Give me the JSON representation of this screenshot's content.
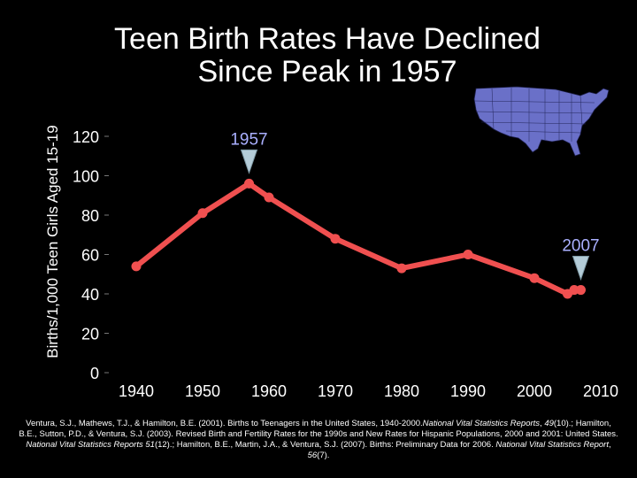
{
  "title_line1": "Teen Birth Rates Have Declined",
  "title_line2": "Since Peak in 1957",
  "chart_data": {
    "type": "line",
    "title": "Teen Birth Rates Have Declined Since Peak in 1957",
    "xlabel": "",
    "ylabel": "Births/1,000 Teen Girls Aged 15-19",
    "x_ticks": [
      1940,
      1950,
      1960,
      1970,
      1980,
      1990,
      2000,
      2010
    ],
    "y_ticks": [
      0,
      20,
      40,
      60,
      80,
      100,
      120
    ],
    "xlim": [
      1932,
      2012
    ],
    "ylim": [
      0,
      120
    ],
    "grid": false,
    "series": [
      {
        "color": "#f05050",
        "x": [
          1940,
          1950,
          1957,
          1960,
          1970,
          1980,
          1990,
          2000,
          2005,
          2006,
          2007
        ],
        "y": [
          54,
          81,
          96,
          89,
          68,
          53,
          60,
          48,
          40,
          42,
          42
        ]
      }
    ],
    "annotations": [
      {
        "label": "1957",
        "x": 1957,
        "y": 96,
        "color": "#aab0ff"
      },
      {
        "label": "2007",
        "x": 2007,
        "y": 42,
        "color": "#aab0ff"
      }
    ]
  },
  "map_icon": "us-states-map-icon",
  "citation": {
    "p1": "Ventura, S.J., Mathews, T.J., & Hamilton, B.E. (2001). Births to Teenagers in the United States, 1940-2000.",
    "j1": "National Vital Statistics Reports",
    "p2": ",",
    "v1": "49",
    "p3": "(10).; Hamilton, B.E., Sutton, P.D., & Ventura, S.J. (2003). Revised Birth and Fertility Rates for the 1990s and New Rates for Hispanic Populations, 2000 and 2001: United States.",
    "j2": "National Vital Statistics Reports 51",
    "p4": "(12).; Hamilton, B.E., Martin, J.A., & Ventura, S.J. (2007). Births: Preliminary Data for 2006.",
    "j3": "National Vital Statistics Report",
    "p5": ",",
    "v2": "56",
    "p6": "(7)."
  }
}
